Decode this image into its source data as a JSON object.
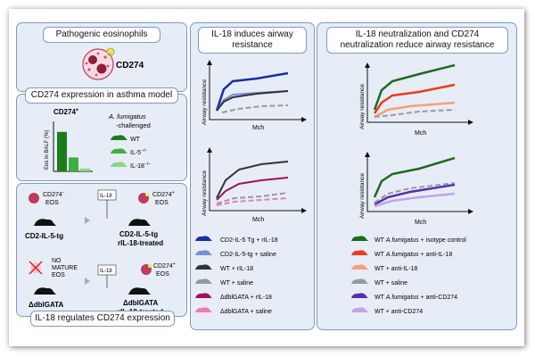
{
  "left": {
    "pathogenic_title": "Pathogenic eosinophils",
    "cd274_label": "CD274",
    "expr_title": "CD274 expression in asthma model",
    "bar_title": "CD274",
    "bar_title_sup": "+",
    "bar_ylabel": "Eos in BALF (%)",
    "legend_title_italic": "A. fumigatus",
    "legend_title_rest": "-challenged",
    "legend": [
      {
        "label": "WT",
        "color": "#1d7a1d"
      },
      {
        "label": "IL-5",
        "sup": "−/−",
        "color": "#3fae3f"
      },
      {
        "label": "IL-18",
        "sup": "−/−",
        "color": "#8bd48b"
      }
    ],
    "bars": [
      0.85,
      0.3,
      0.06
    ],
    "mech": {
      "cd274neg": "CD274",
      "cd274neg_sup": "−",
      "eos": "EOS",
      "il18": "IL-18",
      "cd274pos": "CD274",
      "cd274pos_sup": "+",
      "mouse1": "CD2-IL-5-tg",
      "mouse2a": "CD2-IL-5-tg",
      "mouse2b": "rIL-18-treated",
      "no": "NO",
      "mature": "MATURE",
      "mouse3": "ΔdblGATA",
      "mouse4a": "ΔdblGATA",
      "mouse4b": "rIL-18-treated"
    },
    "bottom_title": "IL-18 regulates CD274 expression"
  },
  "mid": {
    "title": "IL-18 induces airway resistance",
    "ylabel": "Airway resistance",
    "xlabel": "Mch",
    "legend": [
      {
        "label": "CD2-IL-5 Tg + rIL-18",
        "color": "#1a2ea6"
      },
      {
        "label": "CD2-IL-5-tg + saline",
        "color": "#7b8fd6"
      },
      {
        "label": "WT + rIL-18",
        "color": "#333333"
      },
      {
        "label": "WT + saline",
        "color": "#999999"
      },
      {
        "label": "ΔdblGATA + rIL-18",
        "color": "#a0115f"
      },
      {
        "label": "ΔdblGATA + saline",
        "color": "#ee7ab8"
      }
    ]
  },
  "right": {
    "title": "IL-18 neutralization and CD274 neutralization reduce airway resistance",
    "ylabel": "Airway resistance",
    "xlabel": "Mch",
    "legend": [
      {
        "pre": "WT ",
        "italic": "A.fumigatus",
        "post": " + isotype control",
        "color": "#1e6b1e"
      },
      {
        "pre": "WT ",
        "italic": "A.fumigatus",
        "post": " + anti-IL-18",
        "color": "#ee3b1c"
      },
      {
        "pre": "WT + anti-IL-18",
        "italic": "",
        "post": "",
        "color": "#f5a07a"
      },
      {
        "pre": "WT + saline",
        "italic": "",
        "post": "",
        "color": "#9a9a9a"
      },
      {
        "pre": "WT ",
        "italic": "A.fumigatus",
        "post": " + anti-CD274",
        "color": "#5b2bb5"
      },
      {
        "pre": "WT + anti-CD274",
        "italic": "",
        "post": "",
        "color": "#c5a3ea"
      }
    ]
  }
}
